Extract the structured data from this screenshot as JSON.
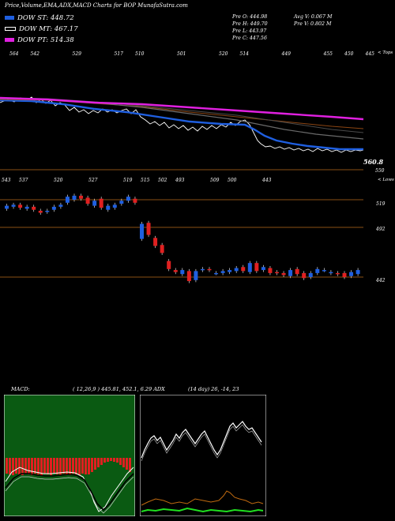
{
  "title": "Price,Volume,EMA,ADX,MACD Charts for BOP MunafaSutra.com",
  "legend": [
    {
      "label": "DOW ST: 448.72",
      "color": "#1f5fe0"
    },
    {
      "label": "DOW MT: 467.17",
      "color": "#000000"
    },
    {
      "label": "DOW PT: 514.38",
      "color": "#e020e0"
    }
  ],
  "quote": {
    "o": "Pre   O: 444.98",
    "h": "Pre   H: 449.70",
    "l": "Pre   L: 443.97",
    "c": "Pre   C: 447.56",
    "avgv": "Avg V: 0.067  M",
    "prev": "Pre   V: 0.802  M"
  },
  "colors": {
    "up": "#1f5fe0",
    "down": "#e02020",
    "ema_short": "#1f5fe0",
    "ema_mid": "#5a5a5a",
    "ema_long": "#e020e0",
    "ema_extra": "#8b4513",
    "ref": "#b86a1a"
  },
  "top_panel": {
    "top_label": "< Tops",
    "bottom_label": "< Lows",
    "tops": [
      "564",
      "542",
      "",
      "529",
      "",
      "517",
      "510",
      "",
      "501",
      "",
      "520",
      "514",
      "",
      "449",
      "",
      "455",
      "450",
      "445"
    ],
    "lows": [
      "543",
      "537",
      "",
      "520",
      "",
      "527",
      "",
      "519",
      "515",
      "502",
      "493",
      "",
      "509",
      "500",
      "",
      "443"
    ],
    "price_tag": "560.8",
    "ref_value": "550"
  },
  "candles_panel": {
    "levels": [
      "519",
      "492",
      "442"
    ],
    "candles": [
      {
        "o": 510,
        "c": 513
      },
      {
        "o": 512,
        "c": 514
      },
      {
        "o": 514,
        "c": 511
      },
      {
        "o": 510,
        "c": 512
      },
      {
        "o": 512,
        "c": 509
      },
      {
        "o": 508,
        "c": 506
      },
      {
        "o": 507,
        "c": 508
      },
      {
        "o": 509,
        "c": 512
      },
      {
        "o": 512,
        "c": 514
      },
      {
        "o": 516,
        "c": 522
      },
      {
        "o": 519,
        "c": 523
      },
      {
        "o": 523,
        "c": 520
      },
      {
        "o": 521,
        "c": 515
      },
      {
        "o": 513,
        "c": 518
      },
      {
        "o": 520,
        "c": 511
      },
      {
        "o": 509,
        "c": 513
      },
      {
        "o": 511,
        "c": 514
      },
      {
        "o": 515,
        "c": 518
      },
      {
        "o": 518,
        "c": 522
      },
      {
        "o": 520,
        "c": 516
      },
      {
        "o": 480,
        "c": 495
      },
      {
        "o": 496,
        "c": 484
      },
      {
        "o": 481,
        "c": 473
      },
      {
        "o": 474,
        "c": 466
      },
      {
        "o": 458,
        "c": 450
      },
      {
        "o": 449,
        "c": 447
      },
      {
        "o": 445,
        "c": 449
      },
      {
        "o": 448,
        "c": 438
      },
      {
        "o": 439,
        "c": 448
      },
      {
        "o": 449,
        "c": 450
      },
      {
        "o": 450,
        "c": 449
      },
      {
        "o": 446,
        "c": 446
      },
      {
        "o": 446,
        "c": 448
      },
      {
        "o": 447,
        "c": 449
      },
      {
        "o": 448,
        "c": 451
      },
      {
        "o": 452,
        "c": 448
      },
      {
        "o": 447,
        "c": 456
      },
      {
        "o": 456,
        "c": 448
      },
      {
        "o": 449,
        "c": 452
      },
      {
        "o": 451,
        "c": 446
      },
      {
        "o": 447,
        "c": 446
      },
      {
        "o": 446,
        "c": 444
      },
      {
        "o": 443,
        "c": 449
      },
      {
        "o": 450,
        "c": 445
      },
      {
        "o": 446,
        "c": 441
      },
      {
        "o": 442,
        "c": 446
      },
      {
        "o": 446,
        "c": 450
      },
      {
        "o": 449,
        "c": 449
      },
      {
        "o": 446,
        "c": 447
      },
      {
        "o": 446,
        "c": 445
      },
      {
        "o": 446,
        "c": 442
      },
      {
        "o": 443,
        "c": 447
      },
      {
        "o": 445,
        "c": 449
      }
    ]
  },
  "macd": {
    "label": "MACD:",
    "values": "( 12,26,9 ) 445.81,  452.1,  6.29  ADX"
  },
  "adx": {
    "label": "(14  day) 26,  -14,  23"
  },
  "chart_data": {
    "type": "line",
    "title": "Price,Volume,EMA,ADX,MACD Charts for BOP MunafaSutra.com",
    "xlabel": "",
    "ylabel": "",
    "series": [
      {
        "name": "DOW ST: 448.72",
        "values": [
          560,
          559,
          558,
          557,
          556,
          553,
          550,
          546,
          541,
          536,
          530,
          525,
          520,
          516,
          512,
          508,
          505,
          502,
          500,
          498
        ]
      },
      {
        "name": "DOW MT: 467.17",
        "values": [
          561,
          560,
          560,
          559,
          558,
          557,
          555,
          553,
          551,
          548,
          545,
          542,
          539,
          536,
          533,
          530,
          527,
          524,
          521,
          518
        ]
      },
      {
        "name": "DOW PT: 514.38",
        "values": [
          562,
          562,
          562,
          561,
          561,
          560,
          560,
          559,
          558,
          557,
          556,
          555,
          554,
          553,
          552,
          551,
          550,
          549,
          548,
          547
        ]
      }
    ],
    "grid": false,
    "legend": "top-left"
  }
}
